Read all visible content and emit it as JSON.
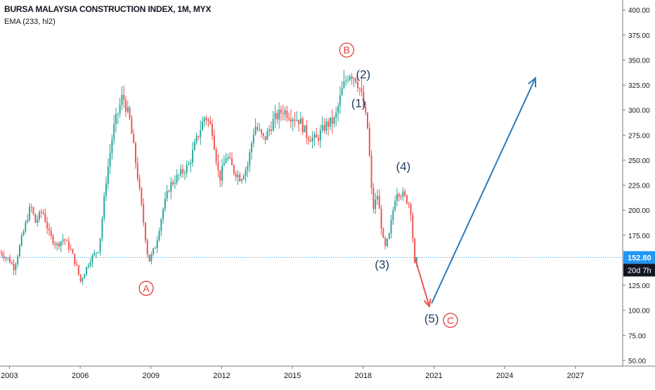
{
  "header": {
    "title": "BURSA MALAYSIA CONSTRUCTION INDEX, 1M, MYX",
    "indicator": "EMA (233, hl2)"
  },
  "chart_data": {
    "type": "candlestick",
    "x_axis": {
      "tick_labels": [
        "2003",
        "2006",
        "2009",
        "2012",
        "2015",
        "2018",
        "2021",
        "2024",
        "2027"
      ],
      "range": [
        2002.6,
        2029.0
      ]
    },
    "y_axis": {
      "tick_labels": [
        "50.00",
        "75.00",
        "100.00",
        "125.00",
        "150.00",
        "175.00",
        "200.00",
        "225.00",
        "250.00",
        "275.00",
        "300.00",
        "325.00",
        "350.00",
        "375.00",
        "400.00"
      ],
      "range": [
        45,
        410
      ],
      "side": "right"
    },
    "last_price": {
      "label": "152.80",
      "value": 152.8,
      "color": "#2196f3"
    },
    "countdown": {
      "label": "20d 7h",
      "color": "#131722"
    },
    "colors": {
      "up": "#26a69a",
      "down": "#ef5350",
      "projection": "#2a7bbf",
      "drop_arrow": "#ef5350",
      "wave_label": "#1e3a5f",
      "abc_label": "#e03c3c"
    },
    "price_path": [
      [
        2002.6,
        158
      ],
      [
        2003.0,
        150
      ],
      [
        2003.2,
        142
      ],
      [
        2003.5,
        170
      ],
      [
        2003.9,
        205
      ],
      [
        2004.1,
        188
      ],
      [
        2004.4,
        200
      ],
      [
        2004.7,
        175
      ],
      [
        2005.0,
        165
      ],
      [
        2005.3,
        172
      ],
      [
        2005.6,
        160
      ],
      [
        2005.9,
        140
      ],
      [
        2006.0,
        128
      ],
      [
        2006.4,
        150
      ],
      [
        2006.8,
        162
      ],
      [
        2007.1,
        230
      ],
      [
        2007.4,
        280
      ],
      [
        2007.8,
        315
      ],
      [
        2008.1,
        290
      ],
      [
        2008.4,
        240
      ],
      [
        2008.7,
        185
      ],
      [
        2008.9,
        148
      ],
      [
        2009.2,
        165
      ],
      [
        2009.5,
        200
      ],
      [
        2009.8,
        225
      ],
      [
        2010.2,
        235
      ],
      [
        2010.6,
        245
      ],
      [
        2011.0,
        275
      ],
      [
        2011.3,
        295
      ],
      [
        2011.6,
        280
      ],
      [
        2011.9,
        230
      ],
      [
        2012.2,
        255
      ],
      [
        2012.5,
        240
      ],
      [
        2012.8,
        232
      ],
      [
        2013.1,
        245
      ],
      [
        2013.4,
        285
      ],
      [
        2013.8,
        270
      ],
      [
        2014.2,
        290
      ],
      [
        2014.6,
        300
      ],
      [
        2014.9,
        295
      ],
      [
        2015.3,
        290
      ],
      [
        2015.6,
        275
      ],
      [
        2016.0,
        270
      ],
      [
        2016.4,
        285
      ],
      [
        2016.8,
        290
      ],
      [
        2017.1,
        320
      ],
      [
        2017.4,
        338
      ],
      [
        2017.7,
        332
      ],
      [
        2017.9,
        318
      ],
      [
        2018.2,
        280
      ],
      [
        2018.4,
        200
      ],
      [
        2018.6,
        215
      ],
      [
        2018.9,
        160
      ],
      [
        2019.1,
        175
      ],
      [
        2019.4,
        220
      ],
      [
        2019.7,
        215
      ],
      [
        2020.0,
        205
      ],
      [
        2020.2,
        140
      ],
      [
        2020.3,
        155
      ]
    ],
    "annotations": [
      {
        "label": "A",
        "kind": "circle",
        "x": 2008.8,
        "y": 122
      },
      {
        "label": "B",
        "kind": "circle",
        "x": 2017.3,
        "y": 360
      },
      {
        "label": "C",
        "kind": "circle",
        "x": 2021.7,
        "y": 90
      },
      {
        "label": "(1)",
        "kind": "text",
        "x": 2017.8,
        "y": 307
      },
      {
        "label": "(2)",
        "kind": "text",
        "x": 2018.0,
        "y": 336
      },
      {
        "label": "(3)",
        "kind": "text",
        "x": 2018.8,
        "y": 146
      },
      {
        "label": "(4)",
        "kind": "text",
        "x": 2019.7,
        "y": 244
      },
      {
        "label": "(5)",
        "kind": "text",
        "x": 2020.9,
        "y": 92
      }
    ],
    "drop_arrow": {
      "from": [
        2020.2,
        152
      ],
      "to": [
        2020.8,
        104
      ]
    },
    "projection_arrow": {
      "from": [
        2020.9,
        107
      ],
      "to": [
        2025.3,
        332
      ]
    }
  }
}
